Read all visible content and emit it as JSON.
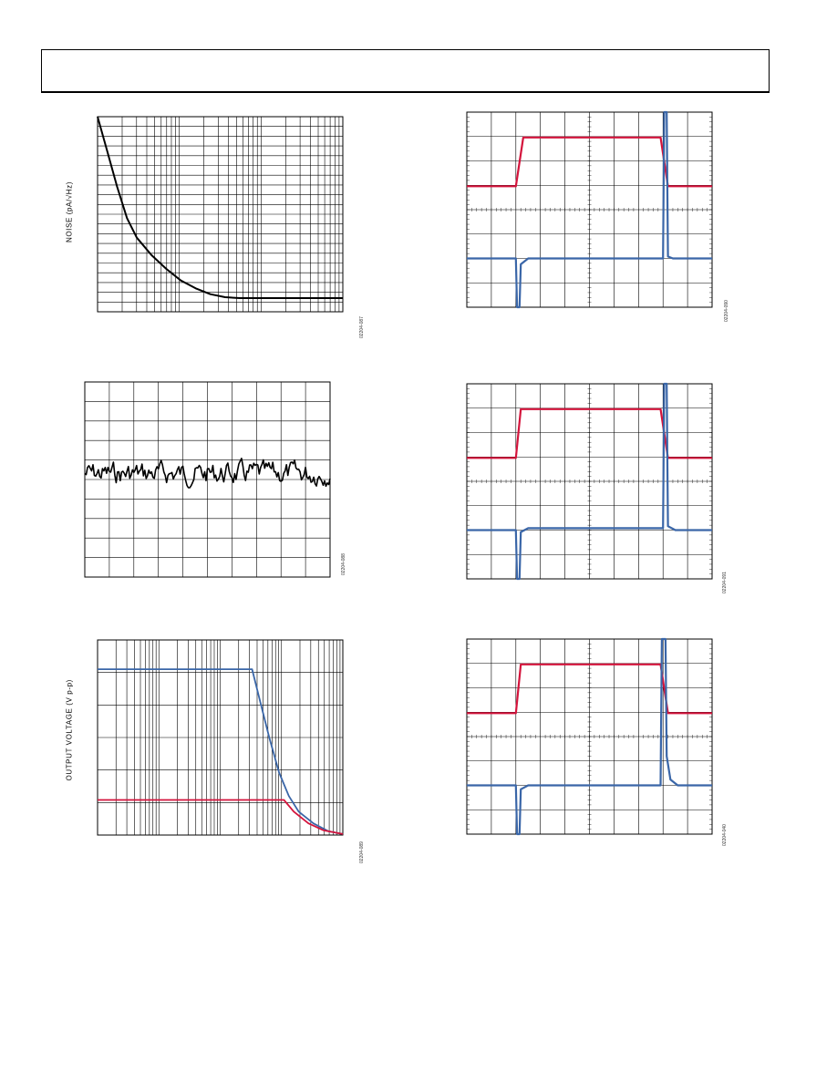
{
  "header": {
    "title": ""
  },
  "colors": {
    "red": "#d4143c",
    "blue": "#3a66a8",
    "black": "#000000",
    "grid": "#000000"
  },
  "chart_data": [
    {
      "type": "line",
      "ylabel": "NOISE (pA/√Hz)",
      "figure_id": "02204-087",
      "xscale": "log",
      "grid": true,
      "series": [
        {
          "color": "black",
          "points": [
            [
              0,
              0
            ],
            [
              0.04,
              0.18
            ],
            [
              0.08,
              0.36
            ],
            [
              0.12,
              0.52
            ],
            [
              0.16,
              0.62
            ],
            [
              0.22,
              0.71
            ],
            [
              0.28,
              0.78
            ],
            [
              0.34,
              0.84
            ],
            [
              0.4,
              0.88
            ],
            [
              0.46,
              0.91
            ],
            [
              0.52,
              0.925
            ],
            [
              0.58,
              0.93
            ],
            [
              1,
              0.93
            ]
          ]
        }
      ]
    },
    {
      "type": "line",
      "figure_id": "02204-088",
      "grid": true,
      "series": [
        {
          "color": "black",
          "style": "noise",
          "center": 0.47,
          "amplitude": 0.045
        }
      ]
    },
    {
      "type": "line",
      "ylabel": "OUTPUT VOLTAGE (V p-p)",
      "figure_id": "02204-089",
      "xscale": "log",
      "grid": true,
      "series": [
        {
          "color": "blue",
          "points": [
            [
              0,
              0.15
            ],
            [
              0.63,
              0.15
            ],
            [
              0.66,
              0.3
            ],
            [
              0.7,
              0.5
            ],
            [
              0.74,
              0.68
            ],
            [
              0.78,
              0.8
            ],
            [
              0.82,
              0.88
            ],
            [
              0.88,
              0.94
            ],
            [
              0.94,
              0.98
            ],
            [
              1,
              0.995
            ]
          ]
        },
        {
          "color": "red",
          "points": [
            [
              0,
              0.82
            ],
            [
              0.76,
              0.82
            ],
            [
              0.8,
              0.88
            ],
            [
              0.86,
              0.94
            ],
            [
              0.92,
              0.975
            ],
            [
              1,
              0.995
            ]
          ]
        }
      ]
    },
    {
      "type": "line",
      "figure_id": "02204-090",
      "grid": true,
      "series": [
        {
          "color": "red",
          "points": [
            [
              0,
              0.38
            ],
            [
              0.2,
              0.38
            ],
            [
              0.23,
              0.13
            ],
            [
              0.79,
              0.13
            ],
            [
              0.82,
              0.38
            ],
            [
              1,
              0.38
            ]
          ]
        },
        {
          "color": "blue",
          "points": [
            [
              0,
              0.75
            ],
            [
              0.2,
              0.75
            ],
            [
              0.205,
              1.0
            ],
            [
              0.215,
              1.0
            ],
            [
              0.22,
              0.78
            ],
            [
              0.25,
              0.75
            ],
            [
              0.8,
              0.75
            ],
            [
              0.805,
              0.0
            ],
            [
              0.815,
              0.0
            ],
            [
              0.82,
              0.74
            ],
            [
              0.84,
              0.75
            ],
            [
              1,
              0.75
            ]
          ]
        }
      ]
    },
    {
      "type": "line",
      "figure_id": "02204-091",
      "grid": true,
      "series": [
        {
          "color": "red",
          "points": [
            [
              0,
              0.38
            ],
            [
              0.2,
              0.38
            ],
            [
              0.22,
              0.13
            ],
            [
              0.79,
              0.13
            ],
            [
              0.82,
              0.38
            ],
            [
              1,
              0.38
            ]
          ]
        },
        {
          "color": "blue",
          "points": [
            [
              0,
              0.75
            ],
            [
              0.2,
              0.75
            ],
            [
              0.205,
              1.0
            ],
            [
              0.215,
              1.0
            ],
            [
              0.22,
              0.76
            ],
            [
              0.25,
              0.74
            ],
            [
              0.8,
              0.74
            ],
            [
              0.805,
              0.0
            ],
            [
              0.815,
              0.0
            ],
            [
              0.82,
              0.73
            ],
            [
              0.85,
              0.75
            ],
            [
              1,
              0.75
            ]
          ]
        }
      ]
    },
    {
      "type": "line",
      "figure_id": "02204-040",
      "grid": true,
      "series": [
        {
          "color": "red",
          "points": [
            [
              0,
              0.38
            ],
            [
              0.2,
              0.38
            ],
            [
              0.22,
              0.13
            ],
            [
              0.79,
              0.13
            ],
            [
              0.82,
              0.38
            ],
            [
              1,
              0.38
            ]
          ]
        },
        {
          "color": "blue",
          "points": [
            [
              0,
              0.75
            ],
            [
              0.2,
              0.75
            ],
            [
              0.205,
              1.0
            ],
            [
              0.215,
              1.0
            ],
            [
              0.22,
              0.77
            ],
            [
              0.25,
              0.75
            ],
            [
              0.79,
              0.75
            ],
            [
              0.795,
              0.0
            ],
            [
              0.81,
              0.0
            ],
            [
              0.815,
              0.6
            ],
            [
              0.83,
              0.72
            ],
            [
              0.86,
              0.75
            ],
            [
              1,
              0.75
            ]
          ]
        }
      ]
    }
  ]
}
